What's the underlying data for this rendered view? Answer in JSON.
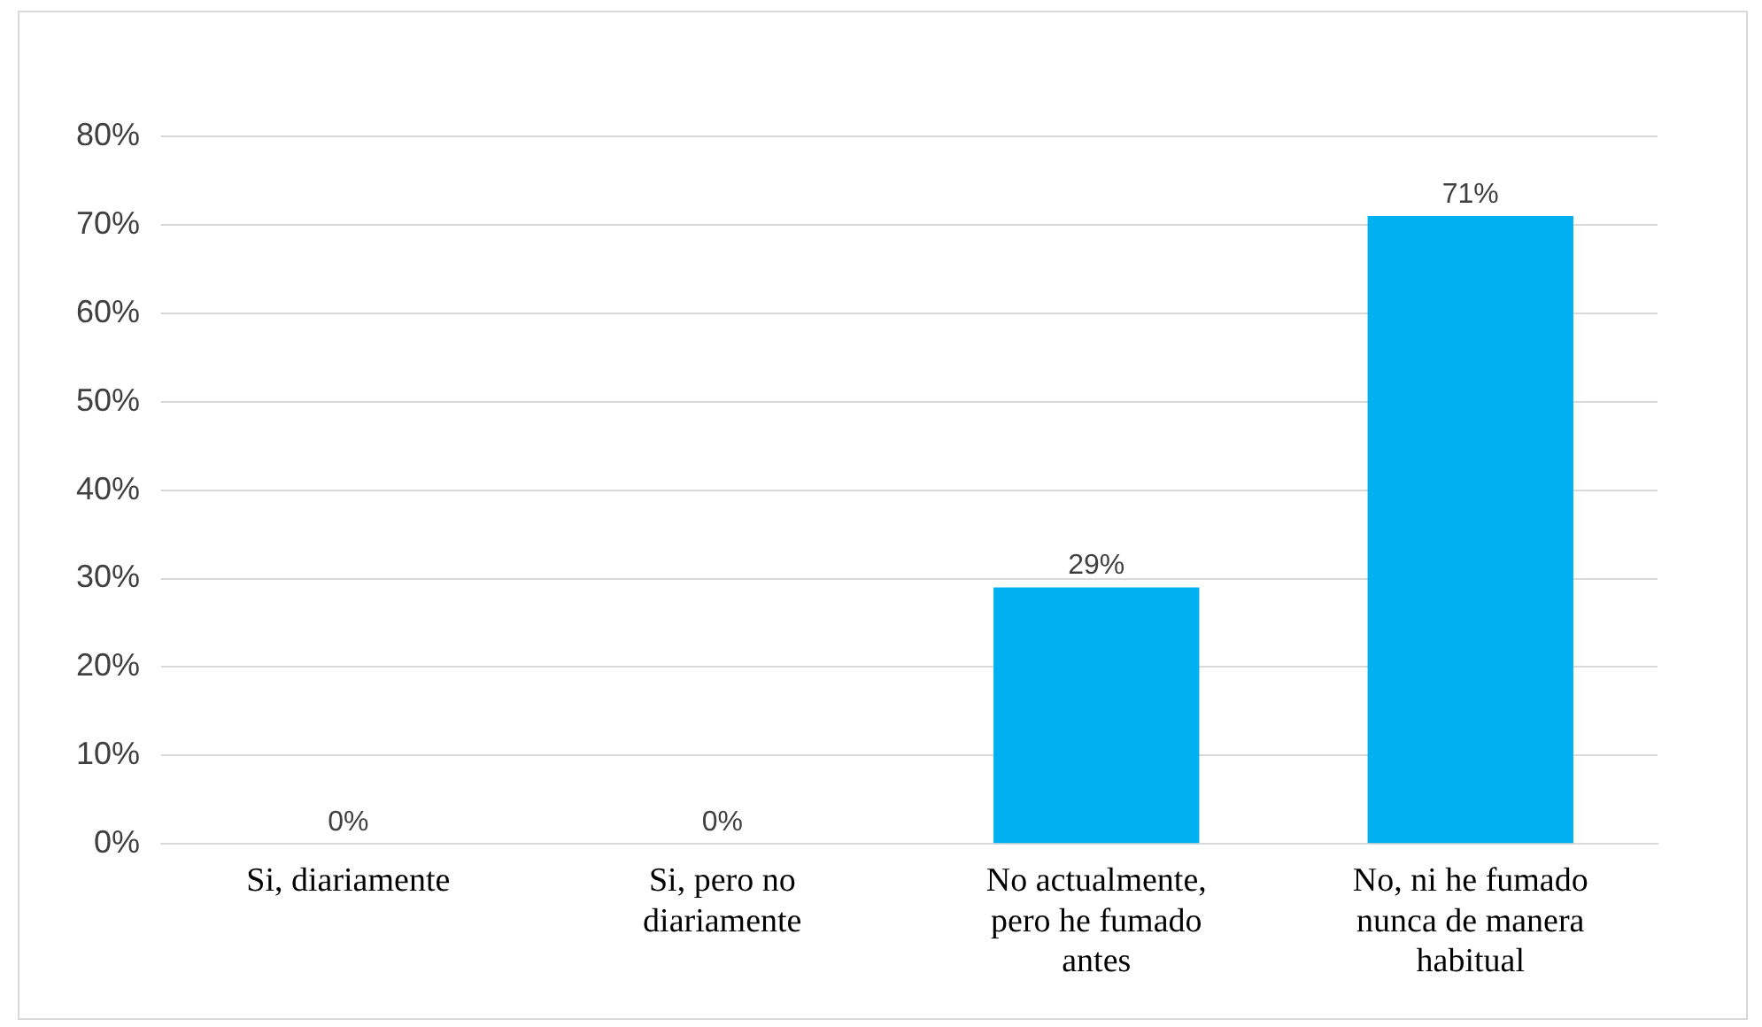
{
  "chart_data": {
    "type": "bar",
    "categories": [
      "Si, diariamente",
      "Si, pero no diariamente",
      "No actualmente, pero he fumado antes",
      "No, ni he fumado nunca de manera habitual"
    ],
    "values": [
      0,
      0,
      29,
      71
    ],
    "value_labels": [
      "0%",
      "0%",
      "29%",
      "71%"
    ],
    "color": "#00b0f0",
    "ylim": [
      0,
      80
    ],
    "yticks": [
      {
        "value": 0,
        "label": "0%"
      },
      {
        "value": 10,
        "label": "10%"
      },
      {
        "value": 20,
        "label": "20%"
      },
      {
        "value": 30,
        "label": "30%"
      },
      {
        "value": 40,
        "label": "40%"
      },
      {
        "value": 50,
        "label": "50%"
      },
      {
        "value": 60,
        "label": "60%"
      },
      {
        "value": 70,
        "label": "70%"
      },
      {
        "value": 80,
        "label": "80%"
      }
    ],
    "grid": "y",
    "legend": false
  }
}
